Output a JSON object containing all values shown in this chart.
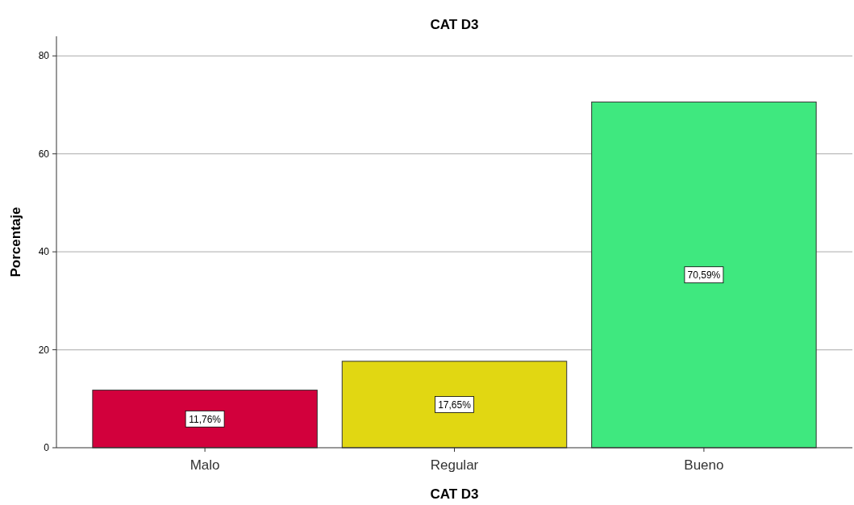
{
  "chart_data": {
    "type": "bar",
    "title": "CAT D3",
    "xlabel": "CAT D3",
    "ylabel": "Porcentaje",
    "categories": [
      "Malo",
      "Regular",
      "Bueno"
    ],
    "values": [
      11.76,
      17.65,
      70.59
    ],
    "colors": [
      "#d2003c",
      "#e1d712",
      "#3fe87f"
    ],
    "value_labels": [
      "11,76%",
      "17,65%",
      "70,59%"
    ],
    "ylim": [
      0,
      84
    ],
    "yticks": [
      0,
      20,
      40,
      60,
      80
    ],
    "grid": "y"
  }
}
